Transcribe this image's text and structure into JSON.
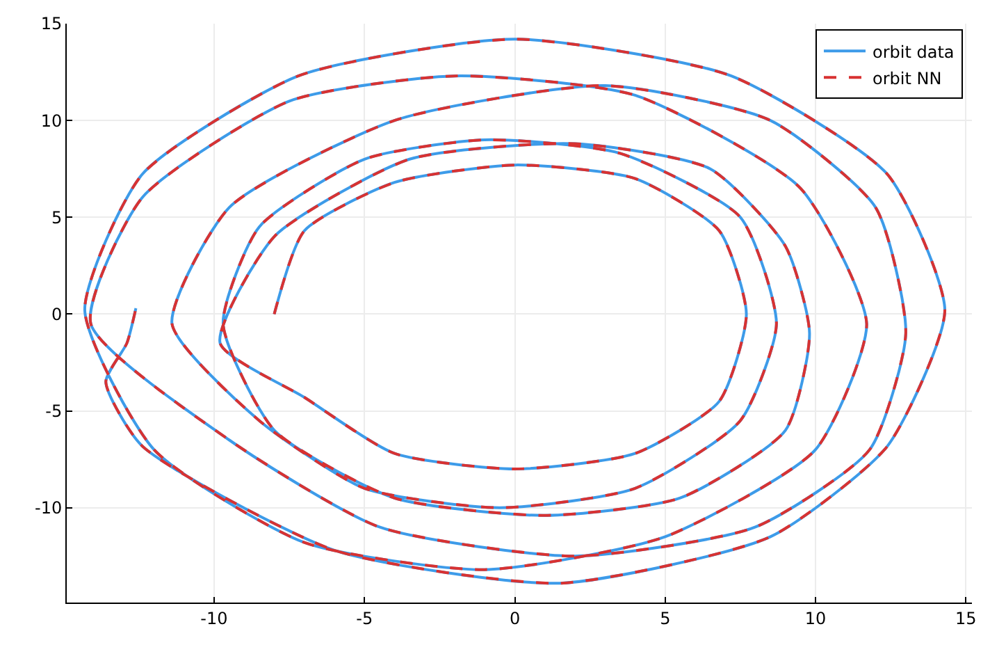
{
  "chart_data": {
    "type": "line",
    "xlim": [
      -14.9,
      15.2
    ],
    "ylim": [
      -14.9,
      15
    ],
    "xticks": [
      -10,
      -5,
      0,
      5,
      10,
      15
    ],
    "yticks": [
      -10,
      -5,
      0,
      5,
      10,
      15
    ],
    "grid": true,
    "legend": "top right",
    "series": [
      {
        "name": "orbit data",
        "color": "#3d9be9",
        "line_style": "solid",
        "x": [
          -8,
          -7,
          -4,
          0,
          4,
          6.8,
          7.7,
          6.8,
          4,
          0,
          -4,
          -7,
          -9.8,
          -8,
          -3.5,
          2,
          6.5,
          9,
          9.8,
          9,
          5.5,
          1,
          -4,
          -8,
          -9.7,
          -8.5,
          -5,
          -1,
          3.5,
          7.5,
          8.7,
          7.5,
          4,
          -0.5,
          -5,
          -8.5,
          -11.4,
          -9.5,
          -4,
          3,
          8.5,
          12,
          13,
          11.8,
          8,
          2,
          -4.5,
          -9.5,
          -14.1,
          -12.4,
          -7.5,
          -2,
          4,
          9.5,
          11.7,
          10,
          5,
          -1,
          -7,
          -12,
          -14.3,
          -12.4,
          -7.2,
          0,
          7.2,
          12.4,
          14.3,
          12.4,
          8.5,
          1.5,
          -6,
          -12.4,
          -13.6,
          -12.9,
          -12.6
        ],
        "values": [
          0,
          4.3,
          6.8,
          7.7,
          7,
          4.3,
          0,
          -4.5,
          -7.2,
          -8,
          -7.2,
          -4.3,
          -1.5,
          4,
          8,
          8.8,
          7.5,
          3.5,
          -1,
          -6,
          -9.5,
          -10.4,
          -9.5,
          -6,
          -0.5,
          4.5,
          8,
          9,
          8.3,
          5,
          -0.5,
          -5.5,
          -9,
          -10,
          -9,
          -5.5,
          -0.5,
          5.5,
          10,
          11.8,
          10,
          5.5,
          -1,
          -7,
          -11,
          -12.5,
          -11,
          -6.5,
          -0.5,
          6,
          11,
          12.3,
          11.3,
          6.5,
          -0.5,
          -7,
          -11.5,
          -13.2,
          -11.8,
          -7,
          0.2,
          7.2,
          12.3,
          14.2,
          12.3,
          7.2,
          0.2,
          -6.8,
          -11.5,
          -13.9,
          -12.2,
          -6.8,
          -3.5,
          -1.5,
          0.3
        ]
      },
      {
        "name": "orbit NN",
        "color": "#d83232",
        "line_style": "dashed",
        "x": [
          -8,
          -7,
          -4,
          0,
          4,
          6.8,
          7.7,
          6.8,
          4,
          0,
          -4,
          -7,
          -9.8,
          -8,
          -3.5,
          2,
          6.5,
          9,
          9.8,
          9,
          5.5,
          1,
          -4,
          -8,
          -9.7,
          -8.5,
          -5,
          -1,
          3.5,
          7.5,
          8.7,
          7.5,
          4,
          -0.5,
          -5,
          -8.5,
          -11.4,
          -9.5,
          -4,
          3,
          8.5,
          12,
          13,
          11.8,
          8,
          2,
          -4.5,
          -9.5,
          -14.1,
          -12.4,
          -7.5,
          -2,
          4,
          9.5,
          11.7,
          10,
          5,
          -1,
          -7,
          -12,
          -14.3,
          -12.4,
          -7.2,
          0,
          7.2,
          12.4,
          14.3,
          12.4,
          8.5,
          1.5,
          -6,
          -12.4,
          -13.6,
          -12.9,
          -12.6
        ],
        "values": [
          0,
          4.3,
          6.8,
          7.7,
          7,
          4.3,
          0,
          -4.5,
          -7.2,
          -8,
          -7.2,
          -4.3,
          -1.5,
          4,
          8,
          8.8,
          7.5,
          3.5,
          -1,
          -6,
          -9.5,
          -10.4,
          -9.5,
          -6,
          -0.5,
          4.5,
          8,
          9,
          8.3,
          5,
          -0.5,
          -5.5,
          -9,
          -10,
          -9,
          -5.5,
          -0.5,
          5.5,
          10,
          11.8,
          10,
          5.5,
          -1,
          -7,
          -11,
          -12.5,
          -11,
          -6.5,
          -0.5,
          6,
          11,
          12.3,
          11.3,
          6.5,
          -0.5,
          -7,
          -11.5,
          -13.2,
          -11.8,
          -7,
          0.2,
          7.2,
          12.3,
          14.2,
          12.3,
          7.2,
          0.2,
          -6.8,
          -11.5,
          -13.9,
          -12.2,
          -6.8,
          -3.5,
          -1.5,
          0.3
        ]
      }
    ]
  }
}
